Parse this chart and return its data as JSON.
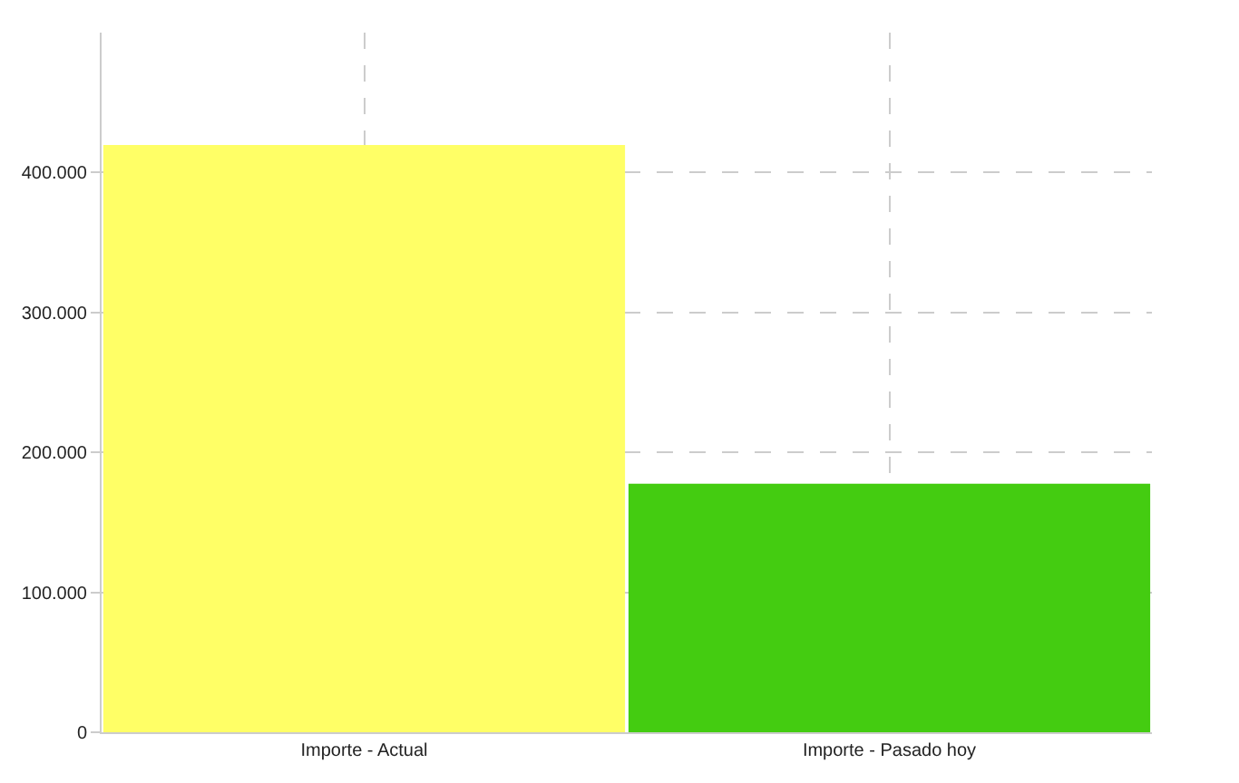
{
  "chart_data": {
    "type": "bar",
    "categories": [
      "Importe - Actual",
      "Importe - Pasado hoy"
    ],
    "values": [
      419000,
      177000
    ],
    "colors": [
      "#ffff66",
      "#44cc11"
    ],
    "ylim": [
      0,
      500000
    ],
    "yticks": [
      0,
      {
        "value": 100000,
        "label": "100.000"
      },
      {
        "value": 200000,
        "label": "200.000"
      },
      {
        "value": 300000,
        "label": "300.000"
      },
      {
        "value": 400000,
        "label": "400.000"
      }
    ],
    "grid": true
  }
}
